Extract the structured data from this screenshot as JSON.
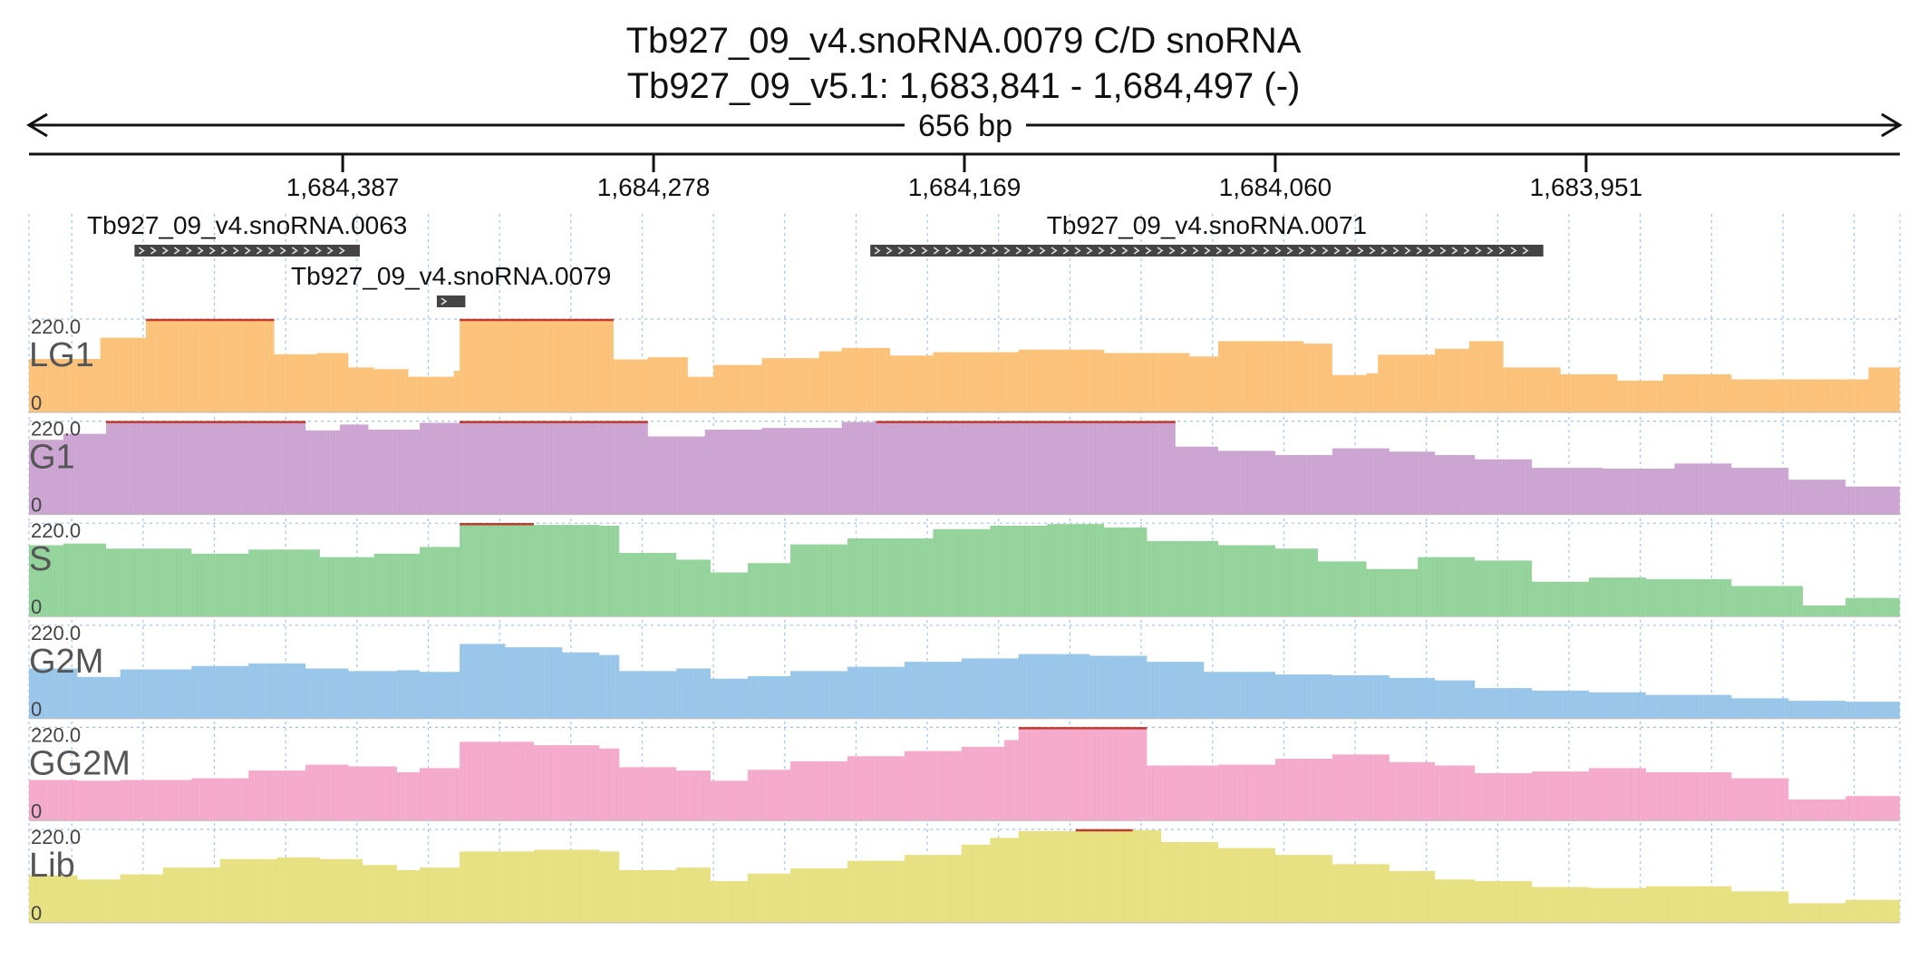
{
  "header": {
    "title_line1": "Tb927_09_v4.snoRNA.0079  C/D snoRNA",
    "title_line2": "Tb927_09_v5.1: 1,683,841 - 1,684,497 (-)",
    "span_label": "656 bp"
  },
  "chart_data": {
    "type": "area",
    "x_axis": {
      "start": 1684497,
      "end": 1683841,
      "strand": "-",
      "tick_labels": [
        "1,684,387",
        "1,684,278",
        "1,684,169",
        "1,684,060",
        "1,683,951"
      ],
      "tick_values": [
        1684387,
        1684278,
        1684169,
        1684060,
        1683951
      ]
    },
    "features": [
      {
        "name": "Tb927_09_v4.snoRNA.0063",
        "start": 1684460,
        "end": 1684381,
        "strand": "+",
        "row": 0
      },
      {
        "name": "Tb927_09_v4.snoRNA.0079",
        "start": 1684354,
        "end": 1684344,
        "strand": "+",
        "row": 1
      },
      {
        "name": "Tb927_09_v4.snoRNA.0071",
        "start": 1684202,
        "end": 1683966,
        "strand": "+",
        "row": 0
      }
    ],
    "ylim": [
      0,
      220
    ],
    "y_max_label": "220.0",
    "y_min_label": "0",
    "grid": true,
    "tracks": [
      {
        "name": "LG1",
        "color": "#fbbf74",
        "values": [
          [
            1684497,
            126
          ],
          [
            1684472,
            176
          ],
          [
            1684456,
            220
          ],
          [
            1684415,
            220
          ],
          [
            1684411,
            137
          ],
          [
            1684396,
            140
          ],
          [
            1684385,
            106
          ],
          [
            1684376,
            102
          ],
          [
            1684364,
            84
          ],
          [
            1684348,
            98
          ],
          [
            1684346,
            220
          ],
          [
            1684297,
            220
          ],
          [
            1684292,
            125
          ],
          [
            1684280,
            130
          ],
          [
            1684266,
            84
          ],
          [
            1684257,
            112
          ],
          [
            1684240,
            128
          ],
          [
            1684220,
            144
          ],
          [
            1684212,
            152
          ],
          [
            1684195,
            134
          ],
          [
            1684180,
            142
          ],
          [
            1684150,
            148
          ],
          [
            1684120,
            140
          ],
          [
            1684090,
            132
          ],
          [
            1684080,
            168
          ],
          [
            1684050,
            162
          ],
          [
            1684040,
            88
          ],
          [
            1684028,
            92
          ],
          [
            1684024,
            136
          ],
          [
            1684004,
            150
          ],
          [
            1683992,
            168
          ],
          [
            1683980,
            106
          ],
          [
            1683960,
            90
          ],
          [
            1683940,
            75
          ],
          [
            1683924,
            90
          ],
          [
            1683900,
            78
          ],
          [
            1683852,
            106
          ],
          [
            1683841,
            106
          ]
        ]
      },
      {
        "name": "G1",
        "color": "#c9a0cf",
        "values": [
          [
            1684497,
            176
          ],
          [
            1684485,
            190
          ],
          [
            1684470,
            220
          ],
          [
            1684420,
            220
          ],
          [
            1684400,
            198
          ],
          [
            1684388,
            212
          ],
          [
            1684378,
            200
          ],
          [
            1684360,
            216
          ],
          [
            1684346,
            220
          ],
          [
            1684297,
            220
          ],
          [
            1684280,
            184
          ],
          [
            1684260,
            200
          ],
          [
            1684240,
            204
          ],
          [
            1684212,
            218
          ],
          [
            1684200,
            220
          ],
          [
            1684150,
            220
          ],
          [
            1684100,
            220
          ],
          [
            1684095,
            160
          ],
          [
            1684080,
            150
          ],
          [
            1684060,
            140
          ],
          [
            1684040,
            156
          ],
          [
            1684020,
            148
          ],
          [
            1684004,
            140
          ],
          [
            1683990,
            130
          ],
          [
            1683970,
            110
          ],
          [
            1683945,
            108
          ],
          [
            1683920,
            120
          ],
          [
            1683900,
            110
          ],
          [
            1683880,
            82
          ],
          [
            1683860,
            66
          ],
          [
            1683841,
            66
          ]
        ]
      },
      {
        "name": "S",
        "color": "#8fd196",
        "values": [
          [
            1684497,
            168
          ],
          [
            1684485,
            172
          ],
          [
            1684470,
            160
          ],
          [
            1684440,
            148
          ],
          [
            1684420,
            158
          ],
          [
            1684395,
            140
          ],
          [
            1684376,
            148
          ],
          [
            1684360,
            164
          ],
          [
            1684346,
            220
          ],
          [
            1684320,
            216
          ],
          [
            1684297,
            214
          ],
          [
            1684290,
            150
          ],
          [
            1684270,
            134
          ],
          [
            1684258,
            104
          ],
          [
            1684245,
            126
          ],
          [
            1684230,
            170
          ],
          [
            1684210,
            184
          ],
          [
            1684180,
            206
          ],
          [
            1684160,
            214
          ],
          [
            1684140,
            218
          ],
          [
            1684120,
            210
          ],
          [
            1684105,
            178
          ],
          [
            1684080,
            168
          ],
          [
            1684060,
            160
          ],
          [
            1684045,
            130
          ],
          [
            1684028,
            112
          ],
          [
            1684010,
            140
          ],
          [
            1683990,
            132
          ],
          [
            1683970,
            82
          ],
          [
            1683950,
            92
          ],
          [
            1683930,
            88
          ],
          [
            1683900,
            72
          ],
          [
            1683875,
            26
          ],
          [
            1683860,
            44
          ],
          [
            1683841,
            50
          ]
        ]
      },
      {
        "name": "G2M",
        "color": "#93c3e8",
        "values": [
          [
            1684497,
            118
          ],
          [
            1684480,
            98
          ],
          [
            1684465,
            116
          ],
          [
            1684440,
            124
          ],
          [
            1684420,
            130
          ],
          [
            1684400,
            118
          ],
          [
            1684385,
            112
          ],
          [
            1684368,
            114
          ],
          [
            1684360,
            110
          ],
          [
            1684346,
            176
          ],
          [
            1684330,
            168
          ],
          [
            1684310,
            156
          ],
          [
            1684297,
            150
          ],
          [
            1684290,
            112
          ],
          [
            1684270,
            118
          ],
          [
            1684258,
            94
          ],
          [
            1684245,
            100
          ],
          [
            1684230,
            112
          ],
          [
            1684210,
            122
          ],
          [
            1684190,
            134
          ],
          [
            1684170,
            142
          ],
          [
            1684150,
            152
          ],
          [
            1684125,
            148
          ],
          [
            1684105,
            134
          ],
          [
            1684085,
            110
          ],
          [
            1684060,
            104
          ],
          [
            1684040,
            102
          ],
          [
            1684020,
            96
          ],
          [
            1684004,
            90
          ],
          [
            1683990,
            72
          ],
          [
            1683970,
            66
          ],
          [
            1683950,
            62
          ],
          [
            1683930,
            56
          ],
          [
            1683900,
            48
          ],
          [
            1683880,
            42
          ],
          [
            1683860,
            40
          ],
          [
            1683841,
            38
          ]
        ]
      },
      {
        "name": "GG2M",
        "color": "#f4a6c9",
        "values": [
          [
            1684497,
            96
          ],
          [
            1684480,
            94
          ],
          [
            1684465,
            96
          ],
          [
            1684440,
            100
          ],
          [
            1684420,
            118
          ],
          [
            1684400,
            132
          ],
          [
            1684385,
            128
          ],
          [
            1684368,
            114
          ],
          [
            1684360,
            124
          ],
          [
            1684346,
            186
          ],
          [
            1684320,
            178
          ],
          [
            1684297,
            170
          ],
          [
            1684290,
            126
          ],
          [
            1684270,
            118
          ],
          [
            1684258,
            94
          ],
          [
            1684245,
            120
          ],
          [
            1684230,
            140
          ],
          [
            1684210,
            152
          ],
          [
            1684190,
            164
          ],
          [
            1684170,
            174
          ],
          [
            1684155,
            190
          ],
          [
            1684150,
            220
          ],
          [
            1684110,
            220
          ],
          [
            1684105,
            130
          ],
          [
            1684080,
            132
          ],
          [
            1684060,
            146
          ],
          [
            1684040,
            156
          ],
          [
            1684020,
            138
          ],
          [
            1684004,
            130
          ],
          [
            1683990,
            112
          ],
          [
            1683970,
            116
          ],
          [
            1683950,
            124
          ],
          [
            1683930,
            114
          ],
          [
            1683900,
            100
          ],
          [
            1683880,
            50
          ],
          [
            1683860,
            58
          ],
          [
            1683841,
            66
          ]
        ]
      },
      {
        "name": "Lib",
        "color": "#e6df7c",
        "values": [
          [
            1684497,
            112
          ],
          [
            1684480,
            102
          ],
          [
            1684465,
            114
          ],
          [
            1684450,
            130
          ],
          [
            1684430,
            150
          ],
          [
            1684410,
            154
          ],
          [
            1684395,
            150
          ],
          [
            1684380,
            136
          ],
          [
            1684368,
            124
          ],
          [
            1684360,
            130
          ],
          [
            1684346,
            168
          ],
          [
            1684320,
            172
          ],
          [
            1684297,
            168
          ],
          [
            1684290,
            124
          ],
          [
            1684270,
            130
          ],
          [
            1684258,
            98
          ],
          [
            1684245,
            116
          ],
          [
            1684230,
            128
          ],
          [
            1684210,
            146
          ],
          [
            1684190,
            160
          ],
          [
            1684170,
            184
          ],
          [
            1684160,
            200
          ],
          [
            1684150,
            216
          ],
          [
            1684130,
            220
          ],
          [
            1684110,
            218
          ],
          [
            1684100,
            190
          ],
          [
            1684080,
            176
          ],
          [
            1684060,
            160
          ],
          [
            1684040,
            138
          ],
          [
            1684020,
            122
          ],
          [
            1684004,
            102
          ],
          [
            1683990,
            98
          ],
          [
            1683970,
            84
          ],
          [
            1683950,
            82
          ],
          [
            1683930,
            86
          ],
          [
            1683900,
            74
          ],
          [
            1683880,
            46
          ],
          [
            1683860,
            54
          ],
          [
            1683841,
            56
          ]
        ]
      }
    ]
  }
}
